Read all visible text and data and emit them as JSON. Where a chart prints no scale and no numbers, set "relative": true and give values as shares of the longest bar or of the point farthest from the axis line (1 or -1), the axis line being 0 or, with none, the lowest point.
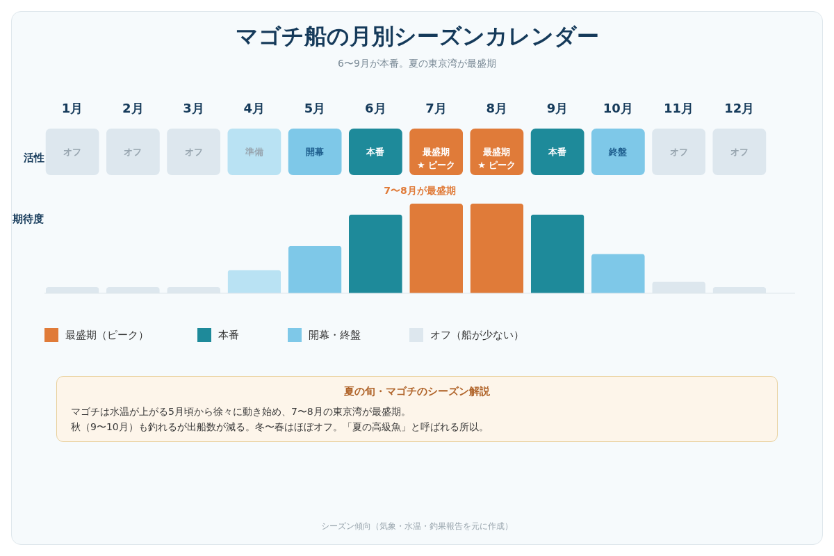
{
  "chart_data": {
    "type": "bar",
    "title": "マゴチ船の月別シーズンカレンダー",
    "subtitle": "6〜9月が本番。夏の東京湾が最盛期",
    "relative": true,
    "stacked": true,
    "ylabel": "期待度",
    "legend": "bottom",
    "categories": [
      "1月",
      "2月",
      "3月",
      "4月",
      "5月",
      "6月",
      "7月",
      "8月",
      "9月",
      "10月",
      "11月",
      "12月"
    ],
    "series": [
      {
        "name": "最盛期（ピーク）",
        "color": "#e07b39",
        "values": [
          null,
          null,
          null,
          null,
          null,
          null,
          1,
          1,
          null,
          null,
          null,
          null
        ]
      },
      {
        "name": "本番",
        "color": "#1e8a9a",
        "values": [
          null,
          null,
          null,
          null,
          null,
          0.88,
          null,
          null,
          0.88,
          null,
          null,
          null
        ]
      },
      {
        "name": "開幕・終盤",
        "color": "#7ec8e8",
        "values": [
          null,
          null,
          null,
          null,
          0.53,
          null,
          null,
          null,
          null,
          0.44,
          null,
          null
        ]
      },
      {
        "name": "オフ（船が少ない）",
        "color": "#dde7ee",
        "values": [
          0.07,
          0.07,
          0.07,
          null,
          null,
          null,
          null,
          null,
          null,
          null,
          0.13,
          0.07
        ]
      },
      {
        "color": "#b9e2f3",
        "values": [
          null,
          null,
          null,
          0.26,
          null,
          null,
          null,
          null,
          null,
          null,
          null,
          null
        ]
      }
    ],
    "annotations": [
      "活性",
      "オフ",
      "オフ",
      "オフ",
      "準備",
      "開幕",
      "本番",
      "最盛期\n★ ピーク",
      "最盛期\n★ ピーク",
      "本番",
      "終盤",
      "オフ",
      "オフ",
      "7〜8月が最盛期",
      "夏の旬・マゴチのシーズン解説",
      "マゴチは水温が上がる5月頃から徐々に動き始め、7〜8月の東京湾が最盛期。",
      "秋（9〜10月）も釣れるが出船数が減る。冬〜春はほぼオフ。「夏の高級魚」と呼ばれる所以。",
      "シーズン傾向（気象・水温・釣果報告を元に作成）"
    ]
  }
}
